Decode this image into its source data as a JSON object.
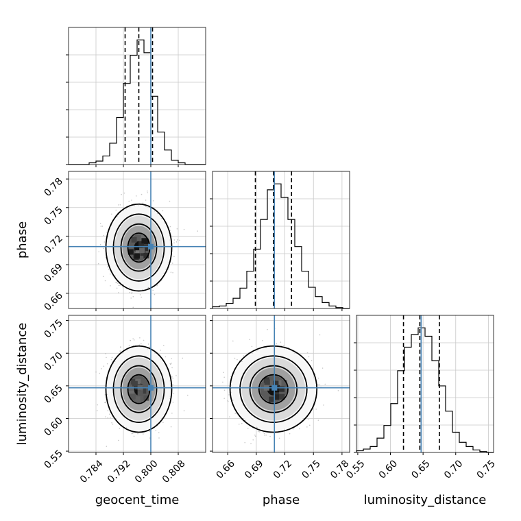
{
  "chart_data": {
    "type": "corner",
    "parameters": [
      "geocent_time",
      "phase",
      "luminosity_distance"
    ],
    "truths": {
      "geocent_time": 0.8,
      "phase": 0.709,
      "luminosity_distance": 0.647
    },
    "quantiles": {
      "geocent_time": [
        0.7925,
        0.7965,
        0.8005
      ],
      "phase": [
        0.689,
        0.708,
        0.727
      ],
      "luminosity_distance": [
        0.62,
        0.645,
        0.675
      ]
    },
    "axes": {
      "geocent_time": {
        "range": [
          0.776,
          0.816
        ],
        "ticks": [
          0.784,
          0.792,
          0.8,
          0.808
        ],
        "tick_labels": [
          "0.784",
          "0.792",
          "0.800",
          "0.808"
        ]
      },
      "phase": {
        "range": [
          0.644,
          0.788
        ],
        "ticks": [
          0.66,
          0.69,
          0.72,
          0.75,
          0.78
        ],
        "tick_labels": [
          "0.66",
          "0.69",
          "0.72",
          "0.75",
          "0.78"
        ]
      },
      "luminosity_distance": {
        "range": [
          0.548,
          0.758
        ],
        "ticks": [
          0.55,
          0.6,
          0.65,
          0.7,
          0.75
        ],
        "tick_labels": [
          "0.55",
          "0.60",
          "0.65",
          "0.70",
          "0.75"
        ]
      }
    },
    "histograms": {
      "geocent_time": {
        "edges": [
          0.776,
          0.778,
          0.78,
          0.782,
          0.784,
          0.786,
          0.788,
          0.79,
          0.792,
          0.794,
          0.796,
          0.798,
          0.8,
          0.802,
          0.804,
          0.806,
          0.808,
          0.81,
          0.812,
          0.814,
          0.816
        ],
        "counts": [
          0,
          0,
          0,
          2,
          4,
          10,
          25,
          55,
          95,
          128,
          146,
          131,
          80,
          38,
          17,
          5,
          2,
          0,
          0,
          0
        ]
      },
      "phase": {
        "edges": [
          0.644,
          0.6512,
          0.6584,
          0.6656,
          0.6728,
          0.68,
          0.6872,
          0.6944,
          0.7016,
          0.7088,
          0.716,
          0.7232,
          0.7304,
          0.7376,
          0.7448,
          0.752,
          0.7592,
          0.7664,
          0.7736,
          0.7808,
          0.788
        ],
        "counts": [
          2,
          3,
          6,
          12,
          24,
          44,
          70,
          105,
          140,
          147,
          131,
          105,
          73,
          44,
          25,
          14,
          7,
          3,
          1,
          0
        ]
      },
      "luminosity_distance": {
        "edges": [
          0.548,
          0.5585,
          0.569,
          0.5795,
          0.59,
          0.6005,
          0.611,
          0.6215,
          0.632,
          0.6425,
          0.653,
          0.6635,
          0.674,
          0.6845,
          0.695,
          0.7055,
          0.716,
          0.7265,
          0.737,
          0.7475,
          0.758
        ],
        "counts": [
          2,
          4,
          7,
          17,
          32,
          58,
          97,
          125,
          140,
          148,
          138,
          109,
          79,
          49,
          24,
          12,
          7,
          3,
          1,
          0
        ]
      }
    },
    "grid": true
  }
}
